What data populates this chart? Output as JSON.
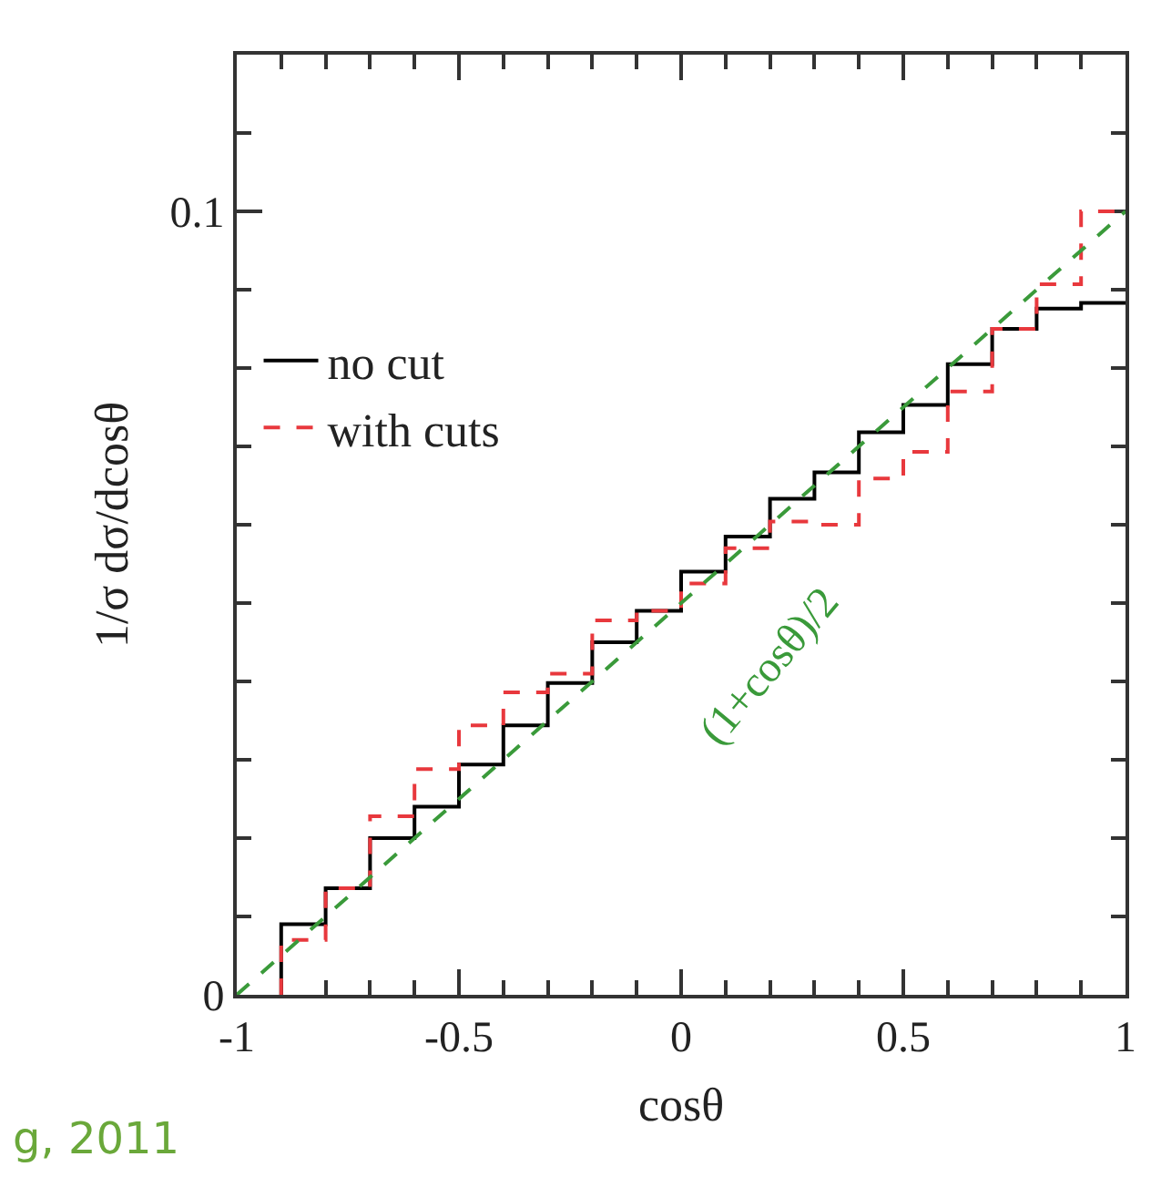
{
  "chart_data": {
    "type": "step",
    "xlabel": "cosθ",
    "ylabel": "1/σ dσ/dcosθ",
    "x": [
      -0.9,
      -0.8,
      -0.7,
      -0.6,
      -0.5,
      -0.4,
      -0.3,
      -0.2,
      -0.1,
      0,
      0.1,
      0.2,
      0.3,
      0.4,
      0.5,
      0.6,
      0.7,
      0.8,
      0.9,
      1
    ],
    "series": [
      {
        "name": "no cut",
        "color": "#000000",
        "line_style": "solid",
        "values": [
          0,
          0.009,
          0.0136,
          0.02,
          0.024,
          0.0294,
          0.0344,
          0.0398,
          0.045,
          0.049,
          0.054,
          0.0585,
          0.0633,
          0.0667,
          0.0718,
          0.0753,
          0.0805,
          0.085,
          0.0876,
          0.0883
        ]
      },
      {
        "name": "with cuts",
        "color": "#e8383d",
        "line_style": "dashed",
        "values": [
          0,
          0.007,
          0.0136,
          0.0228,
          0.0288,
          0.0344,
          0.0386,
          0.041,
          0.0478,
          0.049,
          0.0525,
          0.057,
          0.0604,
          0.06,
          0.0659,
          0.0693,
          0.077,
          0.085,
          0.0907,
          0.1
        ]
      },
      {
        "type": "line",
        "color": "#3a9a3a",
        "line_style": "dashed",
        "x": [
          -1,
          -0.75,
          -0.5,
          -0.25,
          0,
          0.25,
          0.5,
          0.75,
          1
        ],
        "values": [
          0,
          0.0125,
          0.025,
          0.0375,
          0.05,
          0.0625,
          0.075,
          0.0875,
          0.1
        ]
      }
    ],
    "xlim": [
      -1,
      1
    ],
    "ylim": [
      0,
      0.12
    ],
    "xticks": [
      -1,
      {
        "value": -0.9,
        "label": null
      },
      {
        "value": -0.8,
        "label": null
      },
      {
        "value": -0.7,
        "label": null
      },
      {
        "value": -0.6,
        "label": null
      },
      -0.5,
      {
        "value": -0.4,
        "label": null
      },
      {
        "value": -0.3,
        "label": null
      },
      {
        "value": -0.2,
        "label": null
      },
      {
        "value": -0.1,
        "label": null
      },
      0,
      {
        "value": 0.1,
        "label": null
      },
      {
        "value": 0.2,
        "label": null
      },
      {
        "value": 0.3,
        "label": null
      },
      {
        "value": 0.4,
        "label": null
      },
      0.5,
      {
        "value": 0.6,
        "label": null
      },
      {
        "value": 0.7,
        "label": null
      },
      {
        "value": 0.8,
        "label": null
      },
      {
        "value": 0.9,
        "label": null
      },
      1
    ],
    "yticks": [
      0,
      {
        "value": 0.01,
        "label": null
      },
      {
        "value": 0.02,
        "label": null
      },
      {
        "value": 0.03,
        "label": null
      },
      {
        "value": 0.04,
        "label": null
      },
      {
        "value": 0.05,
        "label": null
      },
      {
        "value": 0.06,
        "label": null
      },
      {
        "value": 0.07,
        "label": null
      },
      {
        "value": 0.08,
        "label": null
      },
      {
        "value": 0.09,
        "label": null
      },
      0.1,
      {
        "value": 0.11,
        "label": null
      }
    ],
    "annotations": [
      "(1+cosθ)/2",
      "g, 2011"
    ],
    "legend": "top left"
  }
}
